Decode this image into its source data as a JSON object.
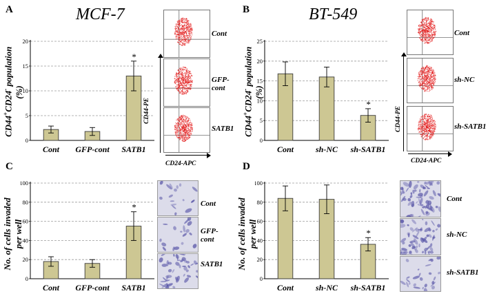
{
  "panels": {
    "A": {
      "letter": "A",
      "title": "MCF-7",
      "ylabel_parts": [
        "CD44",
        "+",
        "CD24",
        "-",
        " population"
      ],
      "ylabel_line2": "(%)"
    },
    "B": {
      "letter": "B",
      "title": "BT-549",
      "ylabel_parts": [
        "CD44",
        "+",
        "CD24",
        "-",
        " population"
      ],
      "ylabel_line2": "(%)"
    },
    "C": {
      "letter": "C",
      "ylabel_line1": "No. of cells invaded",
      "ylabel_line2": "per well"
    },
    "D": {
      "letter": "D",
      "ylabel_line1": "No. of cells invaded",
      "ylabel_line2": "per well"
    }
  },
  "flow_A": {
    "labels": [
      "Cont",
      "GFP-\ncont",
      "SATB1"
    ],
    "y_axis": "CD44-PE",
    "x_axis": "CD24-APC"
  },
  "flow_B": {
    "labels": [
      "Cont",
      "sh-NC",
      "sh-SATB1"
    ],
    "y_axis": "CD44-PE",
    "x_axis": "CD24-APC"
  },
  "micro_C": {
    "labels": [
      "Cont",
      "GFP-\ncont",
      "SATB1"
    ]
  },
  "micro_D": {
    "labels": [
      "Cont",
      "sh-NC",
      "sh-SATB1"
    ]
  },
  "colors": {
    "bar": "#cdc793",
    "bar_edge": "#3a3a3a",
    "grid": "#9a9a9a",
    "flow_dot": "#e31b1b",
    "micro_bg": "#dcdcea",
    "micro_cell": "#5a57a8"
  },
  "chart_data": [
    {
      "id": "A",
      "type": "bar",
      "categories": [
        "Cont",
        "GFP-cont",
        "SATB1"
      ],
      "values": [
        2.2,
        1.8,
        13
      ],
      "errors": [
        0.7,
        0.8,
        3
      ],
      "significant": [
        false,
        false,
        true
      ],
      "ylim": [
        0,
        20
      ],
      "yticks": [
        0,
        5,
        10,
        15,
        20
      ],
      "grid": true
    },
    {
      "id": "B",
      "type": "bar",
      "categories": [
        "Cont",
        "sh-NC",
        "sh-SATB1"
      ],
      "values": [
        16.8,
        16,
        6.3
      ],
      "errors": [
        3,
        2.5,
        1.7
      ],
      "significant": [
        false,
        false,
        true
      ],
      "ylim": [
        0,
        25
      ],
      "yticks": [
        0,
        5,
        10,
        15,
        20,
        25
      ],
      "grid": true
    },
    {
      "id": "C",
      "type": "bar",
      "categories": [
        "Cont",
        "GFP-cont",
        "SATB1"
      ],
      "values": [
        18,
        16,
        55
      ],
      "errors": [
        5,
        4,
        15
      ],
      "significant": [
        false,
        false,
        true
      ],
      "ylim": [
        0,
        100
      ],
      "yticks": [
        0,
        20,
        40,
        60,
        80,
        100
      ],
      "grid": true
    },
    {
      "id": "D",
      "type": "bar",
      "categories": [
        "Cont",
        "sh-NC",
        "sh-SATB1"
      ],
      "values": [
        84,
        83,
        36
      ],
      "errors": [
        13,
        15,
        7
      ],
      "significant": [
        false,
        false,
        true
      ],
      "ylim": [
        0,
        100
      ],
      "yticks": [
        0,
        20,
        40,
        60,
        80,
        100
      ],
      "grid": true
    }
  ],
  "significance_marker": "*"
}
